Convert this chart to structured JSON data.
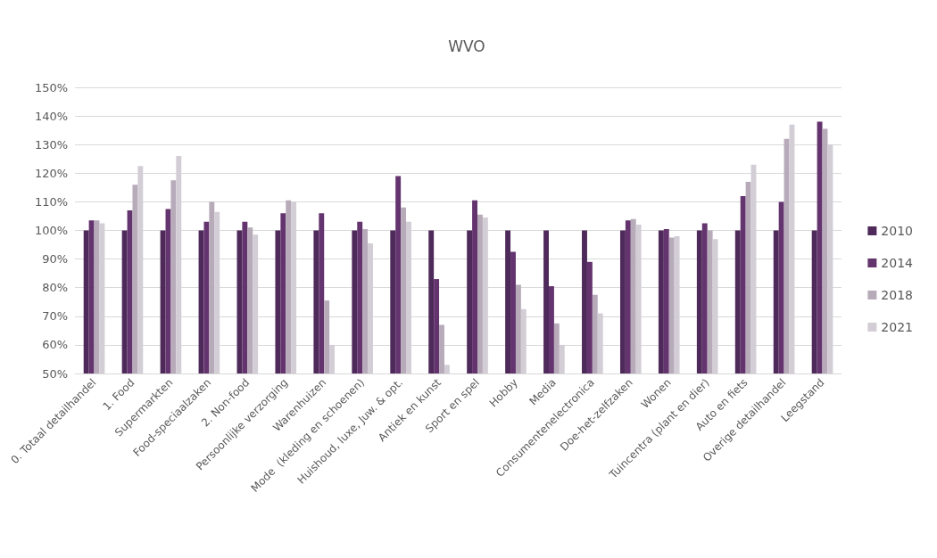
{
  "chart_data": {
    "type": "bar",
    "title": "WVO",
    "categories": [
      "0. Totaal detailhandel",
      "1. Food",
      "Supermarkten",
      "Food-speciaalzaken",
      "2. Non-food",
      "Persoonlijke verzorging",
      "Warenhuizen",
      "Mode  (kleding en schoenen)",
      "Huishoud, luxe, Juw. & opt.",
      "Antiek en kunst",
      "Sport en spel",
      "Hobby",
      "Media",
      "Consumentenelectronica",
      "Doe-het-zelfzaken",
      "Wonen",
      "Tuincentra (plant en dier)",
      "Auto en fiets",
      "Overige detailhandel",
      "Leegstand"
    ],
    "series": [
      {
        "name": "2010",
        "color": "#4e2a5a",
        "values": [
          100,
          100,
          100,
          100,
          100,
          100,
          100,
          100,
          100,
          100,
          100,
          100,
          100,
          100,
          100,
          100,
          100,
          100,
          100,
          100
        ]
      },
      {
        "name": "2014",
        "color": "#64346e",
        "values": [
          103.5,
          107,
          107.5,
          103,
          103,
          106,
          106,
          103,
          119,
          83,
          110.5,
          92.5,
          80.5,
          89,
          103.5,
          100.5,
          102.5,
          112,
          110,
          138
        ]
      },
      {
        "name": "2018",
        "color": "#b7abba",
        "values": [
          103.5,
          116,
          117.5,
          110,
          101,
          110.5,
          75.5,
          100.5,
          108,
          67,
          105.5,
          81,
          67.5,
          77.5,
          104,
          97.5,
          100,
          117,
          132,
          135.5
        ]
      },
      {
        "name": "2021",
        "color": "#d3cdd6",
        "values": [
          102.5,
          122.5,
          126,
          106.5,
          98.5,
          110,
          60,
          95.5,
          103,
          53,
          104.5,
          72.5,
          60,
          71,
          102,
          98,
          97,
          123,
          137,
          130
        ]
      }
    ],
    "ylim": [
      50,
      150
    ],
    "yticks": [
      {
        "value": 50,
        "label": "50%"
      },
      {
        "value": 60,
        "label": "60%"
      },
      {
        "value": 70,
        "label": "70%"
      },
      {
        "value": 80,
        "label": "80%"
      },
      {
        "value": 90,
        "label": "90%"
      },
      {
        "value": 100,
        "label": "100%"
      },
      {
        "value": 110,
        "label": "110%"
      },
      {
        "value": 120,
        "label": "120%"
      },
      {
        "value": 130,
        "label": "130%"
      },
      {
        "value": 140,
        "label": "140%"
      },
      {
        "value": 150,
        "label": "150%"
      }
    ],
    "grid": "y",
    "legend": "right"
  }
}
